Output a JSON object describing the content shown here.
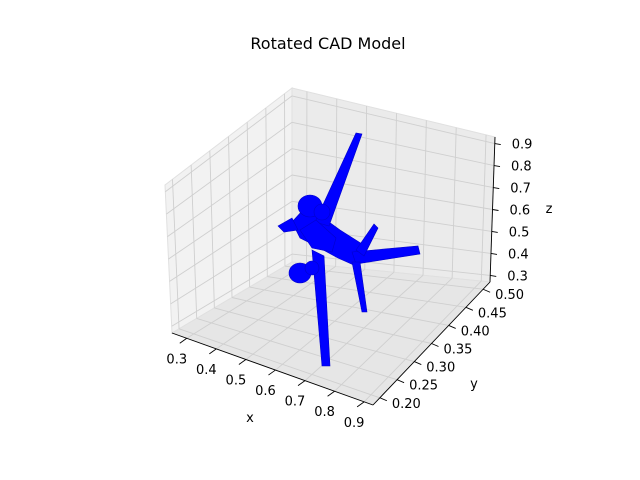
{
  "chart_data": {
    "type": "3d-mesh",
    "title": "Rotated CAD Model",
    "xlabel": "x",
    "ylabel": "y",
    "zlabel": "z",
    "x_ticks": [
      "0.3",
      "0.4",
      "0.5",
      "0.6",
      "0.7",
      "0.8",
      "0.9"
    ],
    "y_ticks": [
      "0.20",
      "0.25",
      "0.30",
      "0.35",
      "0.40",
      "0.45",
      "0.50"
    ],
    "z_ticks": [
      "0.3",
      "0.4",
      "0.5",
      "0.6",
      "0.7",
      "0.8",
      "0.9"
    ],
    "grid": true,
    "model_color": "#0000ff"
  }
}
